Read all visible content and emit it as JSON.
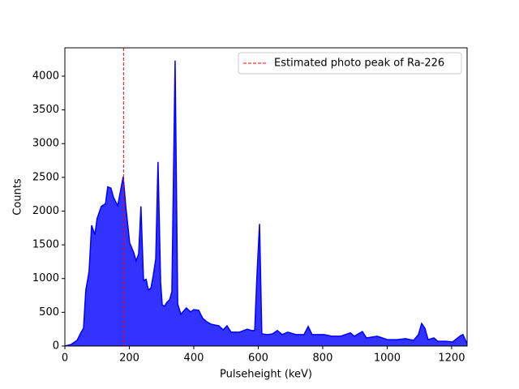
{
  "chart_data": {
    "type": "area",
    "xlabel": "Pulseheight (keV)",
    "ylabel": "Counts",
    "x": [
      0,
      20,
      38,
      50,
      58,
      65,
      75,
      83,
      93,
      100,
      113,
      126,
      133,
      143,
      151,
      164,
      181,
      189,
      201,
      214,
      221,
      229,
      236,
      244,
      252,
      259,
      267,
      274,
      282,
      289,
      297,
      302,
      309,
      317,
      325,
      332,
      342,
      350,
      360,
      377,
      390,
      400,
      415,
      428,
      440,
      453,
      478,
      491,
      503,
      516,
      541,
      566,
      579,
      589,
      596,
      604,
      611,
      629,
      644,
      659,
      674,
      692,
      717,
      742,
      755,
      767,
      805,
      830,
      855,
      886,
      898,
      923,
      936,
      969,
      1001,
      1031,
      1057,
      1082,
      1097,
      1107,
      1117,
      1127,
      1145,
      1157,
      1182,
      1203,
      1228,
      1235,
      1248
    ],
    "values": [
      0,
      25,
      85,
      200,
      265,
      830,
      1100,
      1790,
      1650,
      1890,
      2070,
      2110,
      2360,
      2340,
      2200,
      2080,
      2510,
      2070,
      1530,
      1380,
      1260,
      1370,
      2070,
      970,
      990,
      830,
      860,
      1040,
      1290,
      2730,
      950,
      610,
      590,
      650,
      685,
      805,
      4230,
      625,
      470,
      565,
      505,
      540,
      530,
      410,
      360,
      325,
      300,
      240,
      300,
      205,
      205,
      250,
      230,
      230,
      1045,
      1810,
      180,
      170,
      180,
      230,
      170,
      205,
      170,
      170,
      290,
      170,
      170,
      145,
      145,
      195,
      145,
      215,
      120,
      145,
      95,
      95,
      110,
      85,
      170,
      335,
      265,
      95,
      120,
      70,
      70,
      60,
      155,
      170,
      35
    ],
    "color": "#0000ff",
    "vline": {
      "x": 182,
      "label": "Estimated photo peak of Ra-226",
      "color": "#ff0000"
    },
    "legend": "upper right",
    "xlim": [
      0,
      1248
    ],
    "ylim": [
      0,
      4420
    ],
    "xticks": [
      0,
      200,
      400,
      600,
      800,
      1000,
      1200
    ],
    "yticks": [
      0,
      500,
      1000,
      1500,
      2000,
      2500,
      3000,
      3500,
      4000
    ]
  }
}
